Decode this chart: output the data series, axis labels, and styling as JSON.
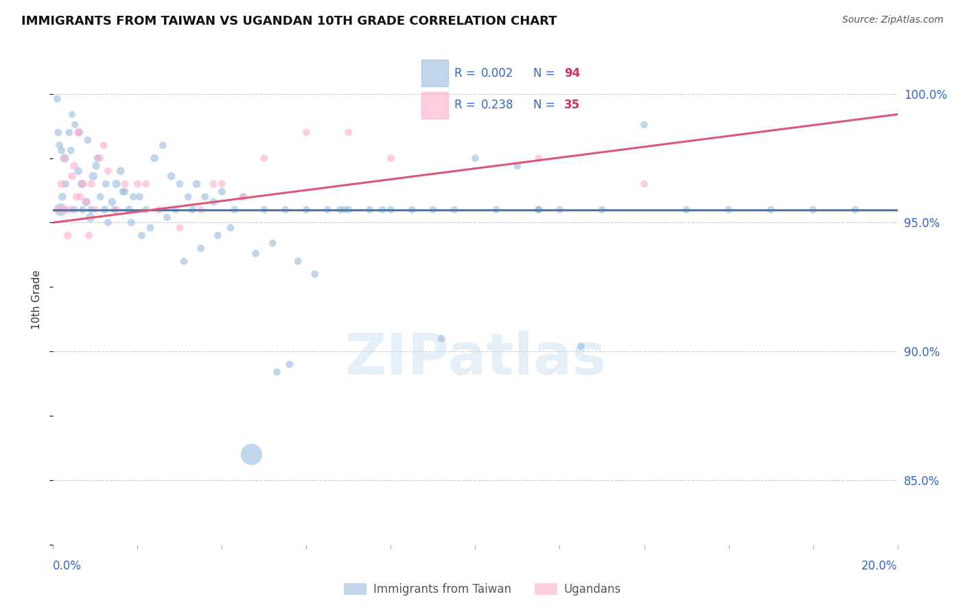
{
  "title": "IMMIGRANTS FROM TAIWAN VS UGANDAN 10TH GRADE CORRELATION CHART",
  "source": "Source: ZipAtlas.com",
  "ylabel": "10th Grade",
  "xlim": [
    0.0,
    20.0
  ],
  "ylim": [
    82.5,
    101.5
  ],
  "yticks": [
    85.0,
    90.0,
    95.0,
    100.0
  ],
  "ytick_labels": [
    "85.0%",
    "90.0%",
    "95.0%",
    "100.0%"
  ],
  "xtick_positions": [
    0.0,
    2.0,
    4.0,
    6.0,
    8.0,
    10.0,
    12.0,
    14.0,
    16.0,
    18.0,
    20.0
  ],
  "legend_blue_r": "0.002",
  "legend_blue_n": "94",
  "legend_pink_r": "0.238",
  "legend_pink_n": "35",
  "legend_label_blue": "Immigrants from Taiwan",
  "legend_label_pink": "Ugandans",
  "blue_color": "#99BBDD",
  "pink_color": "#FFAACC",
  "trend_blue_color": "#4477BB",
  "trend_pink_color": "#DD5577",
  "blue_scatter_x": [
    0.18,
    0.28,
    0.38,
    0.45,
    0.52,
    0.6,
    0.68,
    0.78,
    0.88,
    0.95,
    1.02,
    1.12,
    1.22,
    1.3,
    1.4,
    1.5,
    1.6,
    1.7,
    1.8,
    1.9,
    2.05,
    2.2,
    2.4,
    2.6,
    2.8,
    3.0,
    3.2,
    3.4,
    3.6,
    3.8,
    4.0,
    4.5,
    5.0,
    5.3,
    5.6,
    6.0,
    6.5,
    7.0,
    8.0,
    9.0,
    9.2,
    10.0,
    11.0,
    11.5,
    12.0,
    12.5,
    14.0,
    16.0,
    18.0,
    19.0,
    0.22,
    0.42,
    0.62,
    0.82,
    1.05,
    1.25,
    1.45,
    1.65,
    1.85,
    2.1,
    2.3,
    2.7,
    3.1,
    3.5,
    3.9,
    4.2,
    4.8,
    5.2,
    5.8,
    6.2,
    6.8,
    7.5,
    7.8,
    8.5,
    9.5,
    10.5,
    11.5,
    13.0,
    15.0,
    17.0,
    4.7,
    3.3,
    2.9,
    4.3,
    6.9,
    5.5,
    0.1,
    0.12,
    0.15,
    0.2,
    0.3,
    0.5,
    0.7,
    0.9
  ],
  "blue_scatter_y": [
    95.5,
    97.5,
    98.5,
    99.2,
    98.8,
    97.0,
    96.5,
    95.8,
    95.2,
    96.8,
    97.2,
    96.0,
    95.5,
    95.0,
    95.8,
    96.5,
    97.0,
    96.2,
    95.5,
    96.0,
    96.0,
    95.5,
    97.5,
    98.0,
    96.8,
    96.5,
    96.0,
    96.5,
    96.0,
    95.8,
    96.2,
    96.0,
    95.5,
    89.2,
    89.5,
    95.5,
    95.5,
    95.5,
    95.5,
    95.5,
    90.5,
    97.5,
    97.2,
    95.5,
    95.5,
    90.2,
    98.8,
    95.5,
    95.5,
    95.5,
    96.0,
    97.8,
    98.5,
    98.2,
    97.5,
    96.5,
    95.5,
    96.2,
    95.0,
    94.5,
    94.8,
    95.2,
    93.5,
    94.0,
    94.5,
    94.8,
    93.8,
    94.2,
    93.5,
    93.0,
    95.5,
    95.5,
    95.5,
    95.5,
    95.5,
    95.5,
    95.5,
    95.5,
    95.5,
    95.5,
    86.0,
    95.5,
    95.5,
    95.5,
    95.5,
    95.5,
    99.8,
    98.5,
    98.0,
    97.8,
    96.5,
    95.5,
    95.5,
    95.5
  ],
  "blue_scatter_sizes": [
    180,
    80,
    60,
    50,
    55,
    70,
    80,
    75,
    90,
    80,
    70,
    60,
    70,
    60,
    70,
    80,
    70,
    60,
    70,
    60,
    60,
    60,
    70,
    60,
    70,
    60,
    60,
    70,
    60,
    60,
    60,
    60,
    60,
    60,
    60,
    60,
    60,
    60,
    60,
    60,
    60,
    60,
    60,
    60,
    60,
    60,
    60,
    60,
    60,
    60,
    70,
    60,
    60,
    60,
    60,
    60,
    60,
    60,
    60,
    60,
    60,
    60,
    60,
    60,
    60,
    60,
    60,
    60,
    60,
    60,
    60,
    60,
    60,
    60,
    60,
    60,
    60,
    60,
    60,
    60,
    500,
    60,
    60,
    60,
    60,
    60,
    60,
    60,
    60,
    60,
    60,
    60,
    60,
    60
  ],
  "pink_scatter_x": [
    0.15,
    0.2,
    0.25,
    0.3,
    0.35,
    0.45,
    0.5,
    0.55,
    0.6,
    0.7,
    0.8,
    0.9,
    1.0,
    1.1,
    1.2,
    1.5,
    2.0,
    2.5,
    3.0,
    3.5,
    4.0,
    4.5,
    5.0,
    6.0,
    7.0,
    8.0,
    0.4,
    0.65,
    0.85,
    1.3,
    1.7,
    2.2,
    3.8,
    11.5,
    14.0
  ],
  "pink_scatter_y": [
    95.5,
    96.5,
    97.5,
    95.5,
    94.5,
    96.8,
    97.2,
    96.0,
    98.5,
    96.5,
    95.8,
    96.5,
    95.5,
    97.5,
    98.0,
    95.5,
    96.5,
    95.5,
    94.8,
    95.5,
    96.5,
    96.0,
    97.5,
    98.5,
    98.5,
    97.5,
    95.5,
    96.0,
    94.5,
    97.0,
    96.5,
    96.5,
    96.5,
    97.5,
    96.5
  ],
  "pink_scatter_sizes": [
    80,
    70,
    60,
    60,
    70,
    70,
    70,
    60,
    80,
    70,
    60,
    70,
    60,
    70,
    60,
    60,
    60,
    60,
    60,
    60,
    60,
    60,
    60,
    60,
    60,
    60,
    60,
    60,
    60,
    60,
    60,
    60,
    60,
    60,
    60
  ],
  "blue_trend_x": [
    0.0,
    20.0
  ],
  "blue_trend_y": [
    95.5,
    95.5
  ],
  "pink_trend_x": [
    0.0,
    20.0
  ],
  "pink_trend_y": [
    95.0,
    99.2
  ],
  "watermark": "ZIPatlas",
  "bg_color": "#ffffff",
  "label_color": "#3366CC",
  "r_color_blue": "#3366CC",
  "r_color_pink": "#CC3366",
  "title_color": "#111111",
  "source_color": "#555555"
}
